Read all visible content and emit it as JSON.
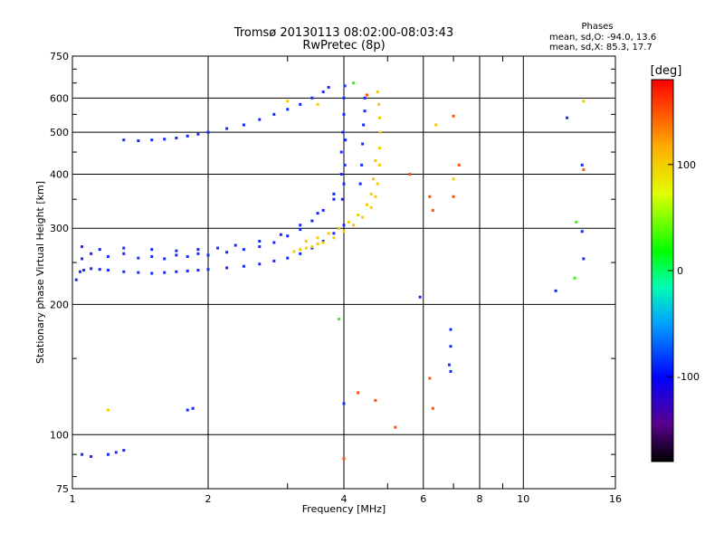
{
  "title": {
    "line1": "Tromsø 20130113 08:02:00-08:03:43",
    "line2": "RwPretec (8p)"
  },
  "stats": {
    "heading": "Phases",
    "line_o": "mean, sd,O: -94.0, 13.6",
    "line_x": "mean, sd,X:  85.3, 17.7"
  },
  "colors": {
    "grid": "#000000",
    "trace_o": "#1a33ff",
    "trace_x": "#d4ef2a"
  },
  "colorbar": {
    "unit": "[deg]",
    "min": -180,
    "max": 180,
    "ticks": [
      {
        "value": 100,
        "label": "100"
      },
      {
        "value": 0,
        "label": "0"
      },
      {
        "value": -100,
        "label": "-100"
      }
    ]
  },
  "chart_data": {
    "type": "scatter",
    "title": "Tromsø 20130113 08:02:00-08:03:43",
    "subtitle": "RwPretec (8p)",
    "xlabel": "Frequency [MHz]",
    "ylabel": "Stationary phase Virtual Height [km]",
    "x_scale": "log",
    "y_scale": "log",
    "xlim": [
      1,
      16
    ],
    "ylim": [
      75,
      750
    ],
    "grid": true,
    "x_ticks": [
      {
        "value": 1,
        "label": "1"
      },
      {
        "value": 2,
        "label": "2"
      },
      {
        "value": 4,
        "label": "4"
      },
      {
        "value": 6,
        "label": "6"
      },
      {
        "value": 8,
        "label": "8"
      },
      {
        "value": 10,
        "label": "10"
      },
      {
        "value": 16,
        "label": "16"
      }
    ],
    "x_minor": [
      3,
      5,
      7,
      9
    ],
    "y_ticks": [
      {
        "value": 75,
        "label": "75"
      },
      {
        "value": 100,
        "label": "100"
      },
      {
        "value": 200,
        "label": "200"
      },
      {
        "value": 300,
        "label": "300"
      },
      {
        "value": 400,
        "label": "400"
      },
      {
        "value": 500,
        "label": "500"
      },
      {
        "value": 600,
        "label": "600"
      },
      {
        "value": 750,
        "label": "750"
      }
    ],
    "series": [
      {
        "phase": -100,
        "points": [
          [
            1.02,
            228
          ],
          [
            1.04,
            238
          ],
          [
            1.06,
            240
          ],
          [
            1.1,
            242
          ],
          [
            1.15,
            241
          ],
          [
            1.2,
            240
          ],
          [
            1.3,
            238
          ],
          [
            1.4,
            237
          ],
          [
            1.5,
            236
          ],
          [
            1.6,
            237
          ],
          [
            1.7,
            238
          ],
          [
            1.8,
            239
          ],
          [
            1.9,
            240
          ],
          [
            2.0,
            241
          ],
          [
            2.2,
            243
          ],
          [
            2.4,
            245
          ],
          [
            2.6,
            248
          ],
          [
            2.8,
            252
          ],
          [
            3.0,
            256
          ],
          [
            3.2,
            262
          ],
          [
            3.4,
            270
          ],
          [
            3.6,
            280
          ],
          [
            3.8,
            292
          ],
          [
            4.0,
            305
          ],
          [
            1.05,
            255
          ],
          [
            1.1,
            262
          ],
          [
            1.2,
            258
          ],
          [
            1.3,
            262
          ],
          [
            1.4,
            256
          ],
          [
            1.5,
            258
          ],
          [
            1.6,
            255
          ],
          [
            1.7,
            260
          ],
          [
            1.8,
            258
          ],
          [
            1.9,
            262
          ],
          [
            2.0,
            260
          ],
          [
            2.2,
            264
          ],
          [
            2.4,
            268
          ],
          [
            2.6,
            272
          ],
          [
            2.8,
            278
          ],
          [
            3.0,
            288
          ],
          [
            3.2,
            298
          ],
          [
            3.4,
            312
          ],
          [
            3.6,
            330
          ],
          [
            3.8,
            360
          ],
          [
            1.05,
            272
          ],
          [
            1.15,
            268
          ],
          [
            1.3,
            270
          ],
          [
            1.5,
            268
          ],
          [
            1.7,
            266
          ],
          [
            1.9,
            268
          ],
          [
            2.1,
            270
          ],
          [
            2.3,
            274
          ],
          [
            2.6,
            280
          ],
          [
            2.9,
            290
          ],
          [
            3.2,
            305
          ],
          [
            3.5,
            325
          ],
          [
            3.8,
            350
          ],
          [
            1.3,
            480
          ],
          [
            1.4,
            478
          ],
          [
            1.5,
            480
          ],
          [
            1.6,
            482
          ],
          [
            1.7,
            485
          ],
          [
            1.8,
            490
          ],
          [
            1.9,
            495
          ],
          [
            2.0,
            500
          ],
          [
            2.2,
            510
          ],
          [
            2.4,
            520
          ],
          [
            2.6,
            535
          ],
          [
            2.8,
            550
          ],
          [
            3.0,
            565
          ],
          [
            3.2,
            580
          ],
          [
            3.4,
            600
          ],
          [
            3.6,
            620
          ],
          [
            3.7,
            635
          ],
          [
            3.95,
            400
          ],
          [
            3.95,
            450
          ],
          [
            3.98,
            500
          ],
          [
            4.0,
            550
          ],
          [
            4.0,
            600
          ],
          [
            4.02,
            640
          ],
          [
            3.97,
            350
          ],
          [
            4.0,
            380
          ],
          [
            4.02,
            420
          ],
          [
            4.03,
            480
          ],
          [
            4.35,
            380
          ],
          [
            4.38,
            420
          ],
          [
            4.4,
            470
          ],
          [
            4.42,
            520
          ],
          [
            4.45,
            560
          ],
          [
            4.45,
            600
          ],
          [
            1.05,
            90
          ],
          [
            1.1,
            89
          ],
          [
            1.2,
            90
          ],
          [
            1.25,
            91
          ],
          [
            1.3,
            92
          ],
          [
            1.8,
            114
          ],
          [
            1.85,
            115
          ],
          [
            5.9,
            208
          ],
          [
            6.9,
            175
          ],
          [
            6.9,
            160
          ],
          [
            6.85,
            145
          ],
          [
            6.9,
            140
          ],
          [
            4.0,
            118
          ],
          [
            13.5,
            295
          ],
          [
            13.6,
            255
          ],
          [
            11.8,
            215
          ],
          [
            12.5,
            540
          ],
          [
            13.5,
            420
          ]
        ]
      },
      {
        "phase": 100,
        "points": [
          [
            3.2,
            268
          ],
          [
            3.4,
            272
          ],
          [
            3.6,
            278
          ],
          [
            3.8,
            285
          ],
          [
            4.0,
            295
          ],
          [
            4.2,
            305
          ],
          [
            4.4,
            318
          ],
          [
            4.6,
            335
          ],
          [
            4.7,
            355
          ],
          [
            4.75,
            380
          ],
          [
            4.8,
            420
          ],
          [
            4.8,
            460
          ],
          [
            4.82,
            500
          ],
          [
            4.8,
            540
          ],
          [
            4.78,
            580
          ],
          [
            4.75,
            620
          ],
          [
            3.3,
            280
          ],
          [
            3.5,
            285
          ],
          [
            3.7,
            292
          ],
          [
            3.9,
            300
          ],
          [
            4.1,
            310
          ],
          [
            4.3,
            322
          ],
          [
            4.5,
            340
          ],
          [
            4.6,
            360
          ],
          [
            4.65,
            390
          ],
          [
            4.7,
            430
          ],
          [
            3.1,
            265
          ],
          [
            3.3,
            270
          ],
          [
            3.5,
            276
          ],
          [
            1.2,
            114
          ],
          [
            3.5,
            580
          ],
          [
            3.0,
            590
          ],
          [
            6.4,
            520
          ],
          [
            7.0,
            390
          ],
          [
            13.6,
            590
          ]
        ]
      },
      {
        "phase": 150,
        "points": [
          [
            4.5,
            610
          ],
          [
            5.6,
            400
          ],
          [
            6.2,
            355
          ],
          [
            6.3,
            330
          ],
          [
            7.0,
            355
          ],
          [
            7.0,
            545
          ],
          [
            7.2,
            420
          ],
          [
            4.3,
            125
          ],
          [
            4.7,
            120
          ],
          [
            5.2,
            104
          ],
          [
            6.2,
            135
          ],
          [
            6.3,
            115
          ],
          [
            13.6,
            410
          ],
          [
            4.0,
            88
          ]
        ]
      },
      {
        "phase": 30,
        "points": [
          [
            3.9,
            185
          ],
          [
            13.0,
            230
          ],
          [
            13.1,
            310
          ],
          [
            4.2,
            650
          ]
        ]
      }
    ]
  }
}
